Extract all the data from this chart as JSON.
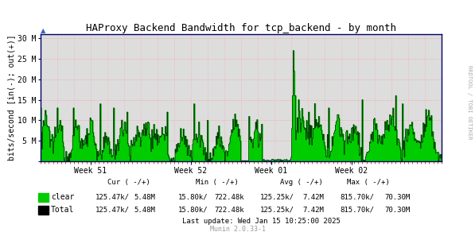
{
  "title": "HAProxy Backend Bandwidth for tcp_backend - by month",
  "ylabel": "bits/second [in(-); out(+)]",
  "ytick_labels": [
    "",
    "5 M",
    "10 M",
    "15 M",
    "20 M",
    "25 M",
    "30 M"
  ],
  "ytick_vals": [
    0,
    5000000,
    10000000,
    15000000,
    20000000,
    25000000,
    30000000
  ],
  "ylim": [
    0,
    31000000
  ],
  "xtick_labels": [
    "Week 51",
    "Week 52",
    "Week 01",
    "Week 02"
  ],
  "xtick_pos": [
    0.125,
    0.375,
    0.575,
    0.775
  ],
  "bg_color": "#FFFFFF",
  "plot_bg_color": "#DDDDDD",
  "grid_color": "#FF9999",
  "grid_dotted_color": "#CCCCCC",
  "fill_color": "#00CC00",
  "line_color": "#000000",
  "border_color": "#000066",
  "watermark_text": "RRDTOOL / TOBI OETIKER",
  "watermark_color": "#AAAAAA",
  "last_update": "Last update: Wed Jan 15 10:25:00 2025",
  "munin_version": "Munin 2.0.33-1",
  "num_points": 600,
  "legend_labels": [
    "clear",
    "Total"
  ],
  "legend_colors": [
    "#00CC00",
    "#000000"
  ],
  "cur_in": "125.47k/",
  "cur_out": "5.48M",
  "min_in": "15.80k/",
  "min_out": "722.48k",
  "avg_in": "125.25k/",
  "avg_out": "7.42M",
  "max_in": "815.70k/",
  "max_out": "70.30M"
}
